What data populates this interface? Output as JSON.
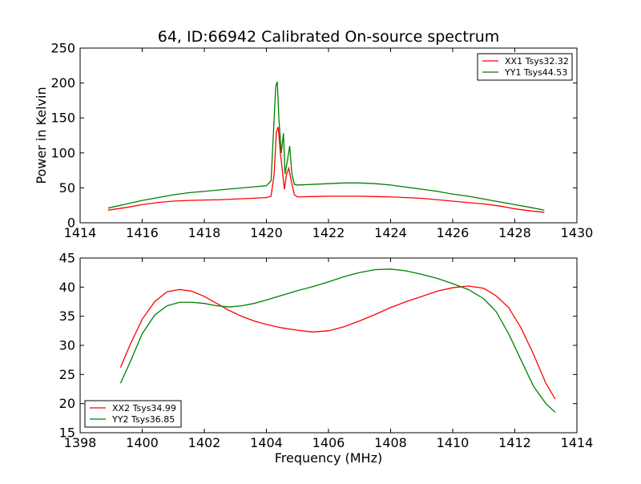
{
  "figure": {
    "title": "64, ID:66942 Calibrated On-source spectrum"
  },
  "chart_data": [
    {
      "type": "line",
      "title": "64, ID:66942 Calibrated On-source spectrum",
      "xlabel": "",
      "ylabel": "Power in Kelvin",
      "xlim": [
        1414,
        1430
      ],
      "ylim": [
        0,
        250
      ],
      "xticks": [
        1414,
        1416,
        1418,
        1420,
        1422,
        1424,
        1426,
        1428,
        1430
      ],
      "yticks": [
        0,
        50,
        100,
        150,
        200,
        250
      ],
      "grid": false,
      "legend_position": "top-right",
      "series": [
        {
          "name": "XX1 Tsys32.32",
          "color": "#ff0000",
          "x": [
            1414.9,
            1415.5,
            1416.0,
            1416.5,
            1417.0,
            1417.5,
            1418.0,
            1418.5,
            1419.0,
            1419.5,
            1420.0,
            1420.15,
            1420.25,
            1420.32,
            1420.38,
            1420.45,
            1420.5,
            1420.58,
            1420.65,
            1420.72,
            1420.8,
            1420.9,
            1421.0,
            1421.5,
            1422.0,
            1422.5,
            1423.0,
            1423.5,
            1424.0,
            1424.5,
            1425.0,
            1425.5,
            1426.0,
            1426.5,
            1427.0,
            1427.5,
            1428.0,
            1428.5,
            1428.95
          ],
          "y": [
            18,
            22,
            26,
            29,
            31,
            32,
            32.5,
            33,
            34,
            35,
            36,
            38,
            70,
            130,
            137,
            100,
            80,
            48,
            70,
            78,
            60,
            40,
            37,
            37.5,
            38,
            38,
            38,
            37.5,
            37,
            36,
            35,
            33,
            31,
            29,
            27,
            24,
            20,
            17,
            15
          ]
        },
        {
          "name": "YY1 Tsys44.53",
          "color": "#008000",
          "x": [
            1414.9,
            1415.5,
            1416.0,
            1416.5,
            1417.0,
            1417.5,
            1418.0,
            1418.5,
            1419.0,
            1419.5,
            1420.0,
            1420.15,
            1420.25,
            1420.3,
            1420.35,
            1420.4,
            1420.48,
            1420.55,
            1420.6,
            1420.68,
            1420.75,
            1420.82,
            1420.9,
            1421.0,
            1421.5,
            1422.0,
            1422.5,
            1423.0,
            1423.5,
            1424.0,
            1424.5,
            1425.0,
            1425.5,
            1426.0,
            1426.5,
            1427.0,
            1427.5,
            1428.0,
            1428.5,
            1428.95
          ],
          "y": [
            21,
            27,
            32,
            36,
            40,
            43,
            45,
            47,
            49,
            51,
            53,
            60,
            150,
            195,
            202,
            150,
            100,
            128,
            70,
            90,
            110,
            70,
            55,
            54,
            55,
            56,
            57,
            57,
            56,
            54,
            51,
            48,
            45,
            41,
            38,
            34,
            30,
            26,
            22,
            18
          ]
        }
      ]
    },
    {
      "type": "line",
      "title": "",
      "xlabel": "Frequency (MHz)",
      "ylabel": "",
      "xlim": [
        1398,
        1414
      ],
      "ylim": [
        15,
        45
      ],
      "xticks": [
        1398,
        1400,
        1402,
        1404,
        1406,
        1408,
        1410,
        1412,
        1414
      ],
      "yticks": [
        15,
        20,
        25,
        30,
        35,
        40,
        45
      ],
      "grid": false,
      "legend_position": "bottom-left",
      "series": [
        {
          "name": "XX2 Tsys34.99",
          "color": "#ff0000",
          "x": [
            1399.3,
            1399.6,
            1400.0,
            1400.4,
            1400.8,
            1401.2,
            1401.6,
            1402.0,
            1402.4,
            1402.8,
            1403.2,
            1403.6,
            1404.0,
            1404.5,
            1405.0,
            1405.5,
            1406.0,
            1406.5,
            1407.0,
            1407.5,
            1408.0,
            1408.5,
            1409.0,
            1409.5,
            1410.0,
            1410.5,
            1411.0,
            1411.4,
            1411.8,
            1412.2,
            1412.6,
            1413.0,
            1413.3
          ],
          "y": [
            26.2,
            30,
            34.5,
            37.5,
            39.2,
            39.6,
            39.3,
            38.4,
            37.2,
            36.0,
            35.0,
            34.2,
            33.6,
            33.0,
            32.6,
            32.3,
            32.5,
            33.2,
            34.2,
            35.3,
            36.5,
            37.5,
            38.4,
            39.3,
            39.9,
            40.2,
            39.8,
            38.5,
            36.5,
            33.0,
            28.5,
            23.5,
            20.8
          ]
        },
        {
          "name": "YY2 Tsys36.85",
          "color": "#008000",
          "x": [
            1399.3,
            1399.6,
            1400.0,
            1400.4,
            1400.8,
            1401.2,
            1401.6,
            1402.0,
            1402.4,
            1402.8,
            1403.2,
            1403.6,
            1404.0,
            1404.5,
            1405.0,
            1405.5,
            1406.0,
            1406.5,
            1407.0,
            1407.5,
            1408.0,
            1408.5,
            1409.0,
            1409.5,
            1410.0,
            1410.5,
            1411.0,
            1411.4,
            1411.8,
            1412.2,
            1412.6,
            1413.0,
            1413.3
          ],
          "y": [
            23.5,
            27,
            32,
            35.2,
            36.8,
            37.4,
            37.4,
            37.2,
            36.8,
            36.6,
            36.8,
            37.2,
            37.8,
            38.6,
            39.4,
            40.1,
            40.9,
            41.8,
            42.5,
            43.0,
            43.1,
            42.8,
            42.2,
            41.5,
            40.6,
            39.6,
            38.0,
            35.8,
            32.0,
            27.5,
            23.0,
            20.0,
            18.5
          ]
        }
      ]
    }
  ]
}
